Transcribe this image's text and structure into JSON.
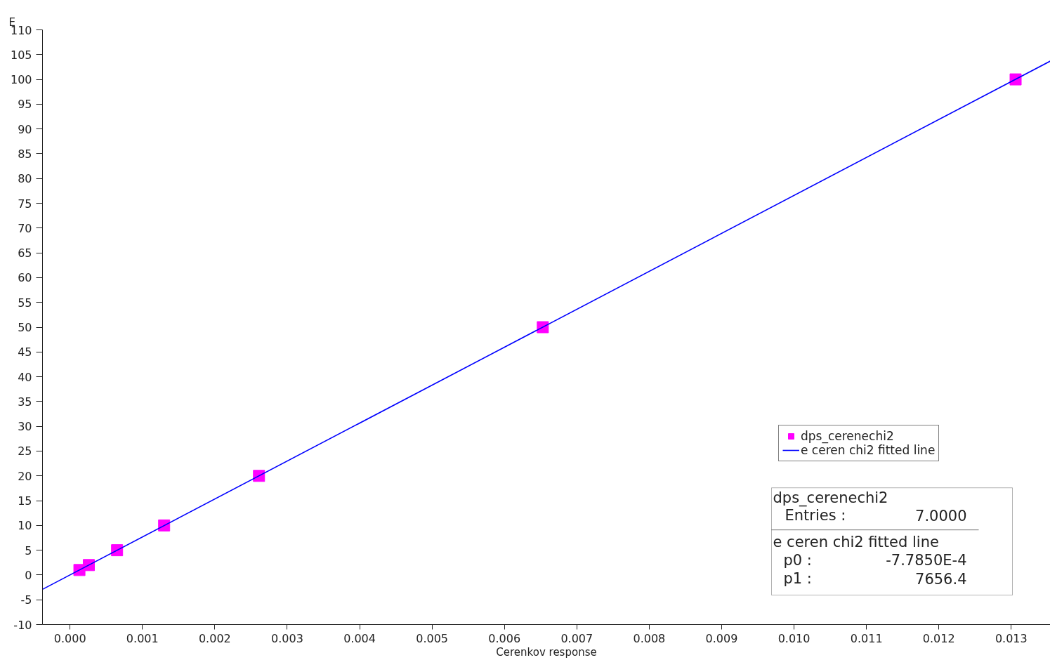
{
  "chart_data": {
    "type": "scatter",
    "xlabel": "Cerenkov response",
    "ylabel": "E",
    "xlim": [
      -0.00038,
      0.01354
    ],
    "ylim": [
      -10,
      110
    ],
    "xticks": [
      {
        "value": 0,
        "label": "0.000"
      },
      {
        "value": 0.001,
        "label": "0.001"
      },
      {
        "value": 0.002,
        "label": "0.002"
      },
      {
        "value": 0.003,
        "label": "0.003"
      },
      {
        "value": 0.004,
        "label": "0.004"
      },
      {
        "value": 0.005,
        "label": "0.005"
      },
      {
        "value": 0.006,
        "label": "0.006"
      },
      {
        "value": 0.007,
        "label": "0.007"
      },
      {
        "value": 0.008,
        "label": "0.008"
      },
      {
        "value": 0.009,
        "label": "0.009"
      },
      {
        "value": 0.01,
        "label": "0.010"
      },
      {
        "value": 0.011,
        "label": "0.011"
      },
      {
        "value": 0.012,
        "label": "0.012"
      },
      {
        "value": 0.013,
        "label": "0.013"
      }
    ],
    "yticks": [
      -10,
      -5,
      0,
      5,
      10,
      15,
      20,
      25,
      30,
      35,
      40,
      45,
      50,
      55,
      60,
      65,
      70,
      75,
      80,
      85,
      90,
      95,
      100,
      105,
      110
    ],
    "series": [
      {
        "name": "dps_cerenechi2",
        "color": "#ff00ff",
        "marker": "square",
        "x": [
          0.00013,
          0.00026,
          0.00065,
          0.0013,
          0.00261,
          0.00653,
          0.01306
        ],
        "values": [
          1,
          2,
          5,
          10,
          20,
          50,
          100
        ]
      },
      {
        "name": "e ceren chi2 fitted line",
        "type": "line",
        "color": "#0000ff",
        "line_style": "solid",
        "x": [
          -0.00038,
          0.01354
        ],
        "values": [
          -2.9,
          103.7
        ]
      }
    ],
    "grid": false,
    "legend": "bottom right",
    "annotations": [
      "dps_cerenechi2",
      "Entries :",
      "7.0000",
      "e ceren chi2 fitted line",
      "p0 :",
      "-7.7850E-4",
      "p1 :",
      "7656.4"
    ]
  }
}
